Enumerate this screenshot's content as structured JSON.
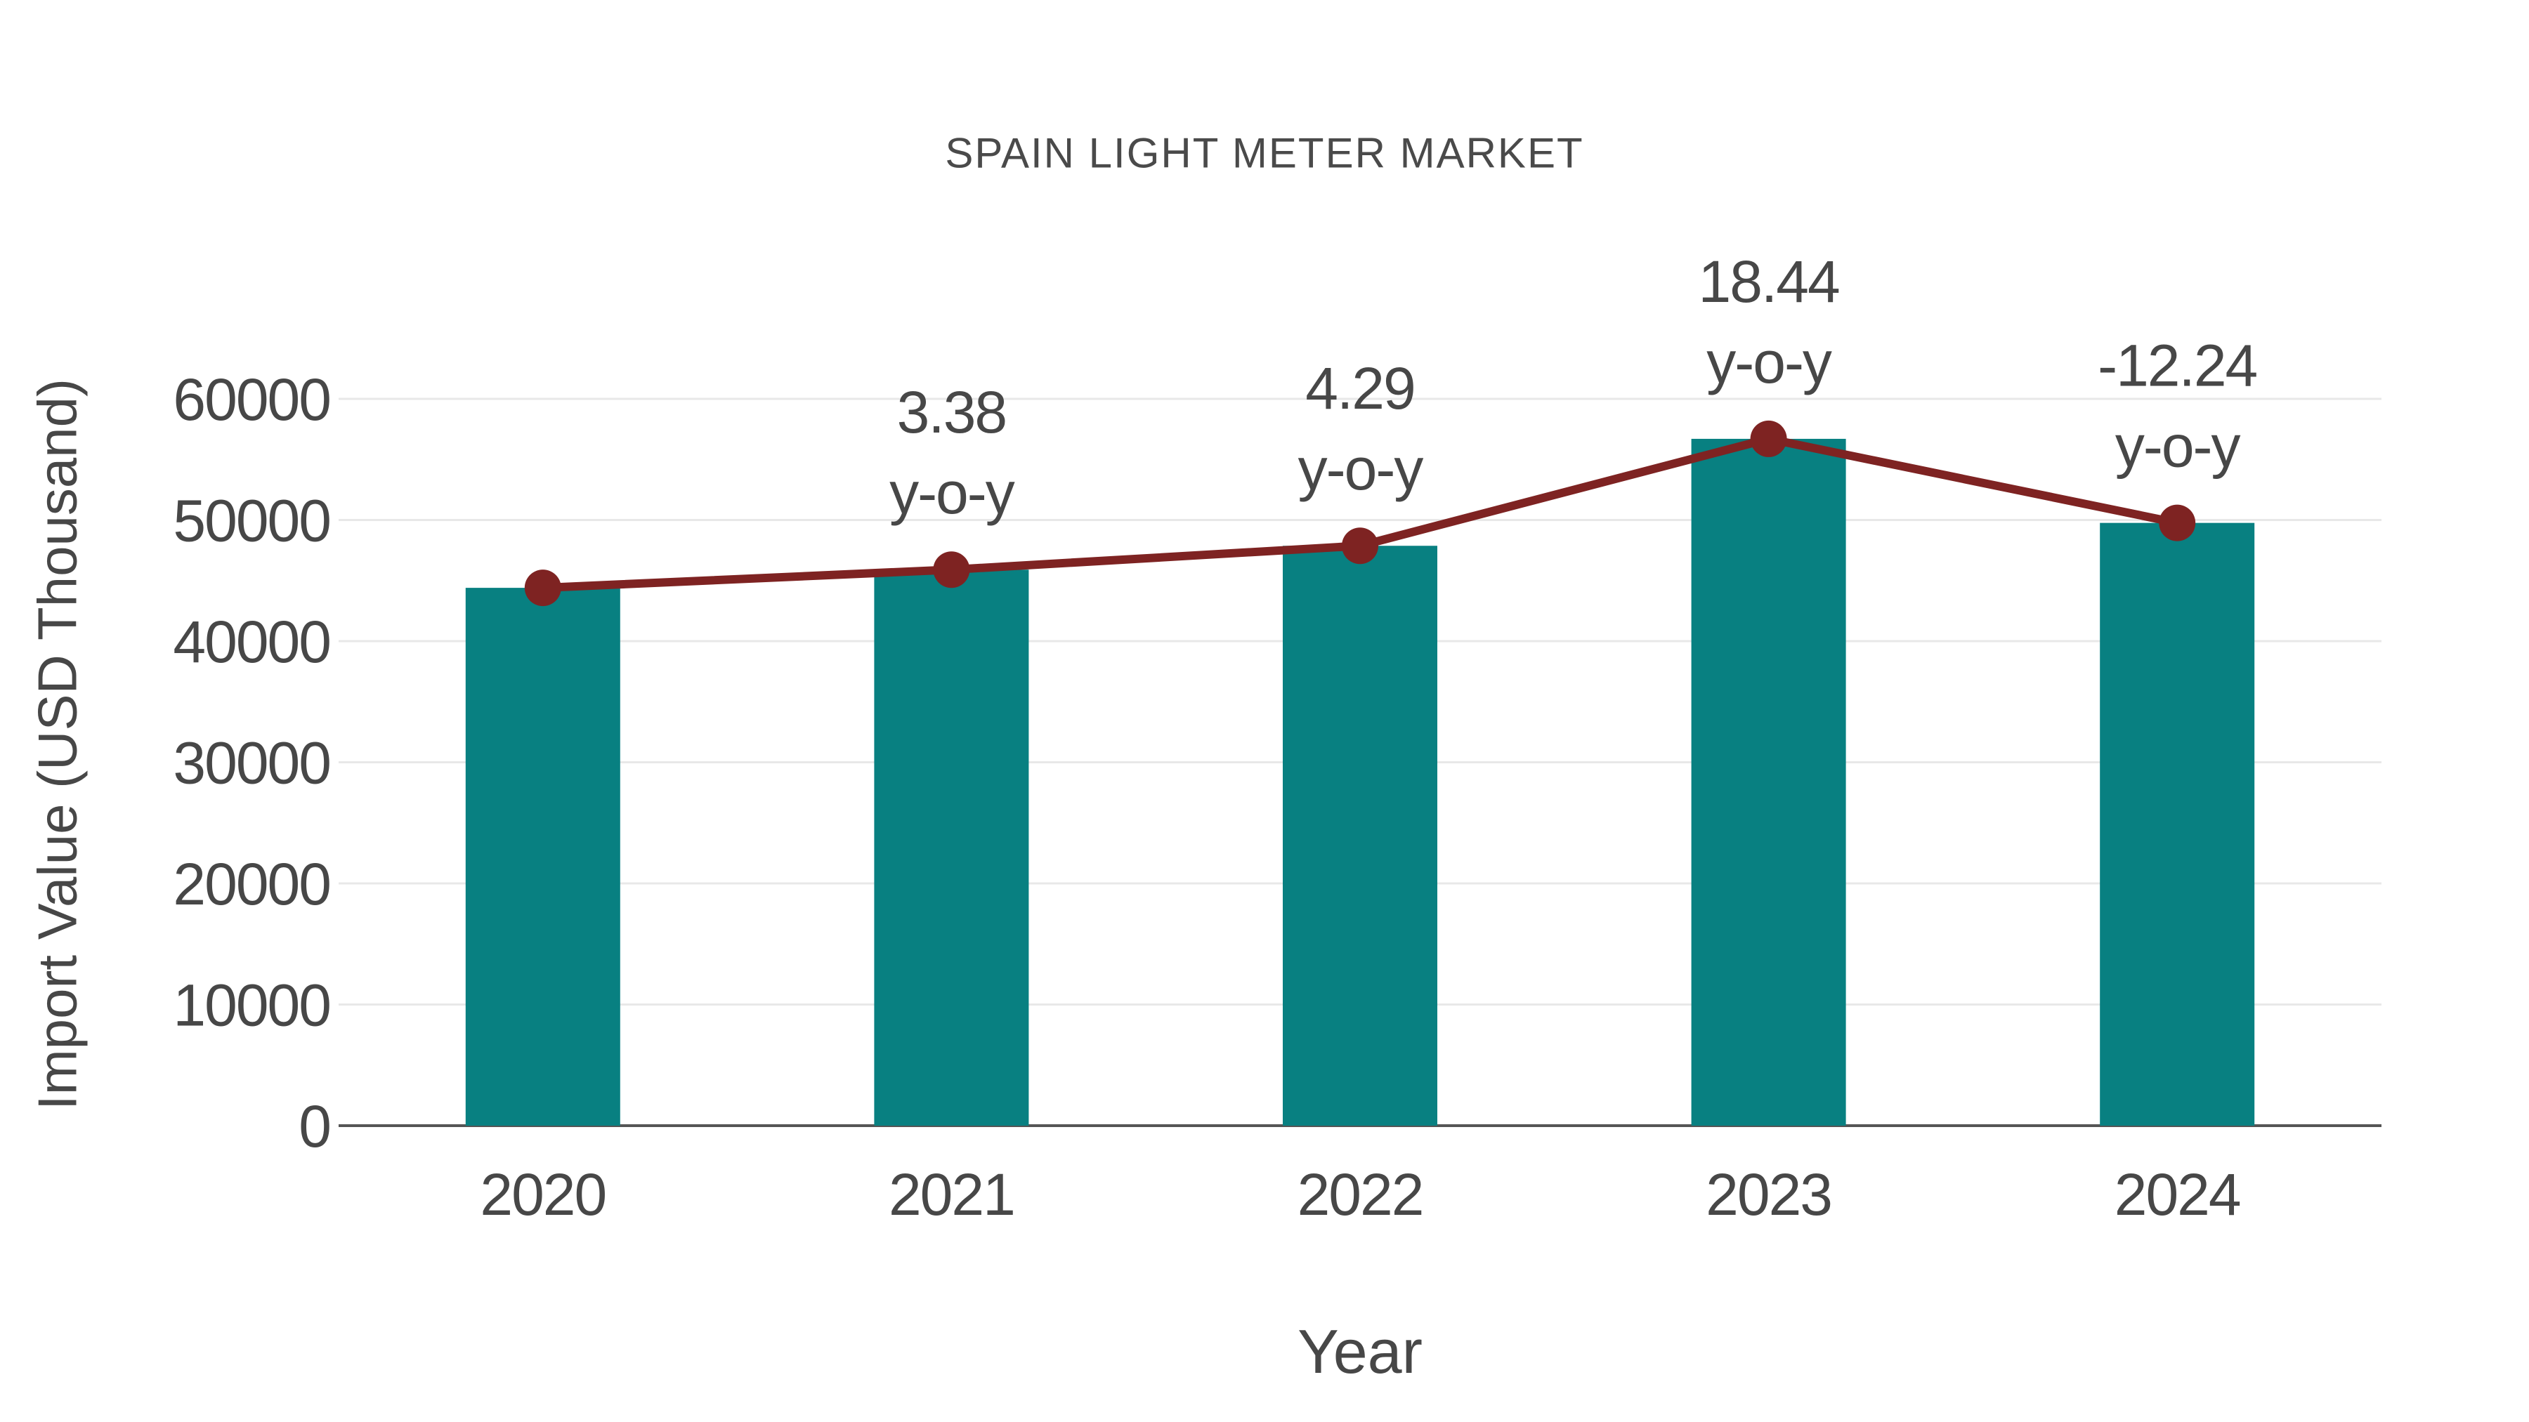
{
  "chart_data": {
    "type": "combo-bar-line",
    "title": "SPAIN LIGHT METER MARKET",
    "xlabel": "Year",
    "ylabel": "Import Value (USD Thousand)",
    "categories": [
      "2020",
      "2021",
      "2022",
      "2023",
      "2024"
    ],
    "series": [
      {
        "name": "Import Value bars",
        "type": "bar",
        "color": "#088081",
        "values": [
          44400,
          45900,
          47870,
          56700,
          49760
        ]
      },
      {
        "name": "Import Value trend line",
        "type": "line",
        "color": "#7E2322",
        "values": [
          44400,
          45900,
          47870,
          56700,
          49760
        ]
      }
    ],
    "annotations": [
      {
        "category": "2021",
        "line1": "3.38",
        "line2": "y-o-y"
      },
      {
        "category": "2022",
        "line1": "4.29",
        "line2": "y-o-y"
      },
      {
        "category": "2023",
        "line1": "18.44",
        "line2": "y-o-y"
      },
      {
        "category": "2024",
        "line1": "-12.24",
        "line2": "y-o-y"
      }
    ],
    "ylim": [
      0,
      60000
    ],
    "yticks": [
      0,
      10000,
      20000,
      30000,
      40000,
      50000,
      60000
    ],
    "grid": "horizontal",
    "legend": "none",
    "colors": {
      "bar": "#088081",
      "line": "#7E2322",
      "text": "#474747",
      "gridline": "#E8E8E8",
      "axis": "#555555",
      "background": "#FFFFFF"
    }
  }
}
